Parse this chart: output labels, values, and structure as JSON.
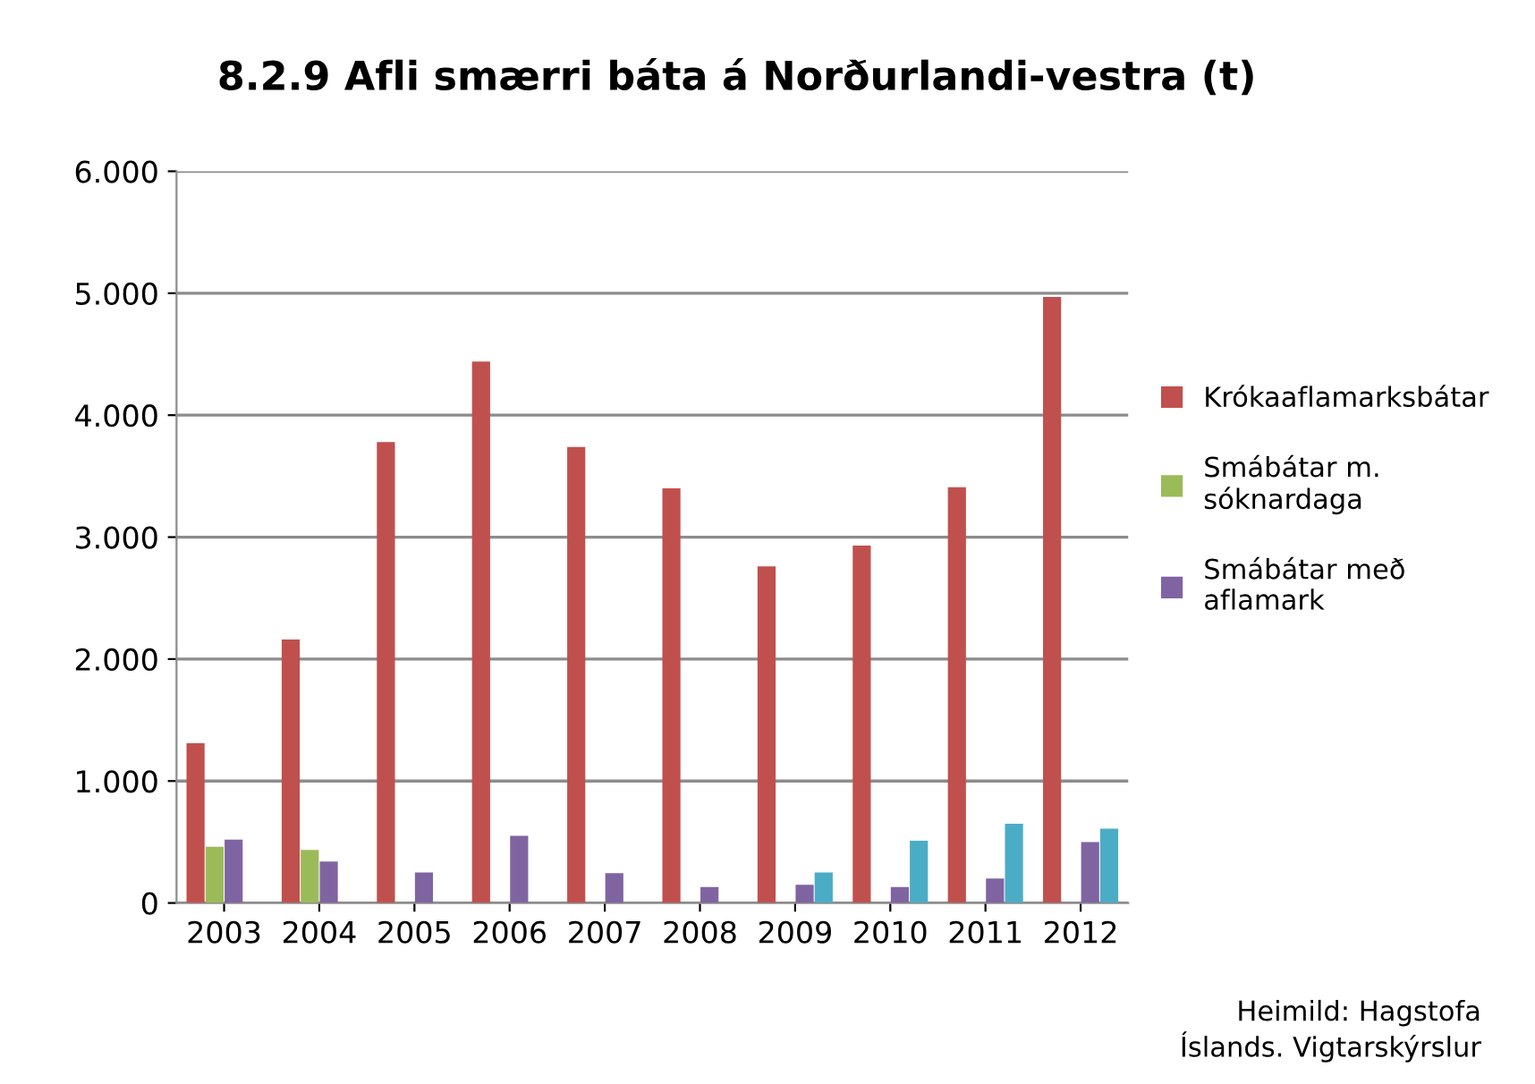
{
  "chart_data": {
    "type": "bar",
    "title": "8.2.9 Afli smærri báta á Norðurlandi-vestra (t)",
    "categories": [
      "2003",
      "2004",
      "2005",
      "2006",
      "2007",
      "2008",
      "2009",
      "2010",
      "2011",
      "2012"
    ],
    "series": [
      {
        "name": "Krókaaflamarksbátar",
        "color": "#c0504d",
        "values": [
          1310,
          2160,
          3780,
          4440,
          3740,
          3400,
          2760,
          2930,
          3410,
          4970
        ]
      },
      {
        "name": "Smábátar m. sóknardaga",
        "color": "#9bbb59",
        "values": [
          460,
          435,
          null,
          null,
          null,
          null,
          null,
          null,
          null,
          null
        ]
      },
      {
        "name": "Smábátar með aflamark",
        "color": "#8064a2",
        "values": [
          520,
          340,
          250,
          550,
          245,
          130,
          150,
          130,
          200,
          500
        ]
      },
      {
        "color": "#4bacc6",
        "values": [
          null,
          null,
          null,
          null,
          null,
          null,
          250,
          510,
          650,
          610
        ]
      }
    ],
    "ylim": [
      0,
      6000
    ],
    "yticks": [
      {
        "value": 0,
        "label": "0"
      },
      {
        "value": 1000,
        "label": "1.000"
      },
      {
        "value": 2000,
        "label": "2.000"
      },
      {
        "value": 3000,
        "label": "3.000"
      },
      {
        "value": 4000,
        "label": "4.000"
      },
      {
        "value": 5000,
        "label": "5.000"
      },
      {
        "value": 6000,
        "label": "6.000"
      }
    ],
    "grid": "y",
    "legend": "right",
    "annotations": [
      "Heimild: Hagstofa Íslands. Vigtarskýrslur"
    ]
  }
}
